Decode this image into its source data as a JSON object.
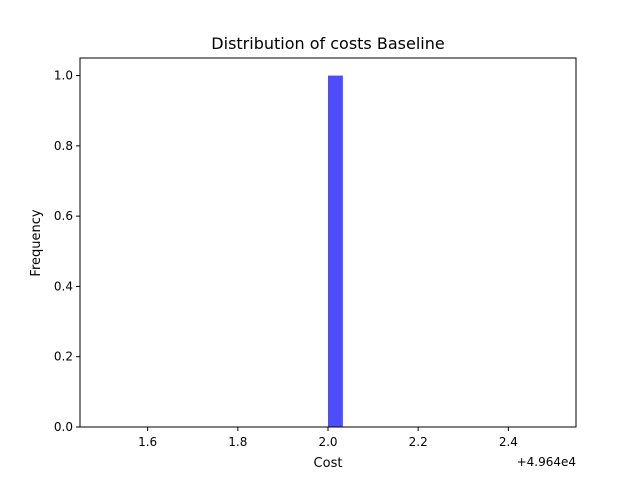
{
  "chart_data": {
    "type": "bar",
    "title": "Distribution of costs Baseline",
    "xlabel": "Cost",
    "ylabel": "Frequency",
    "x_offset_label": "+4.964e4",
    "xlim": [
      1.45,
      2.55
    ],
    "ylim": [
      0,
      1.05
    ],
    "x_ticks": [
      {
        "value": 1.6,
        "label": "1.6"
      },
      {
        "value": 1.8,
        "label": "1.8"
      },
      {
        "value": 2.0,
        "label": "2.0"
      },
      {
        "value": 2.2,
        "label": "2.2"
      },
      {
        "value": 2.4,
        "label": "2.4"
      }
    ],
    "y_ticks": [
      {
        "value": 0.0,
        "label": "0.0"
      },
      {
        "value": 0.2,
        "label": "0.2"
      },
      {
        "value": 0.4,
        "label": "0.4"
      },
      {
        "value": 0.6,
        "label": "0.6"
      },
      {
        "value": 0.8,
        "label": "0.8"
      },
      {
        "value": 1.0,
        "label": "1.0"
      }
    ],
    "bars": [
      {
        "x_start": 2.0,
        "x_end": 2.033,
        "value": 1
      }
    ],
    "bar_color": "#4d4dff",
    "grid": false,
    "legend": "none"
  }
}
